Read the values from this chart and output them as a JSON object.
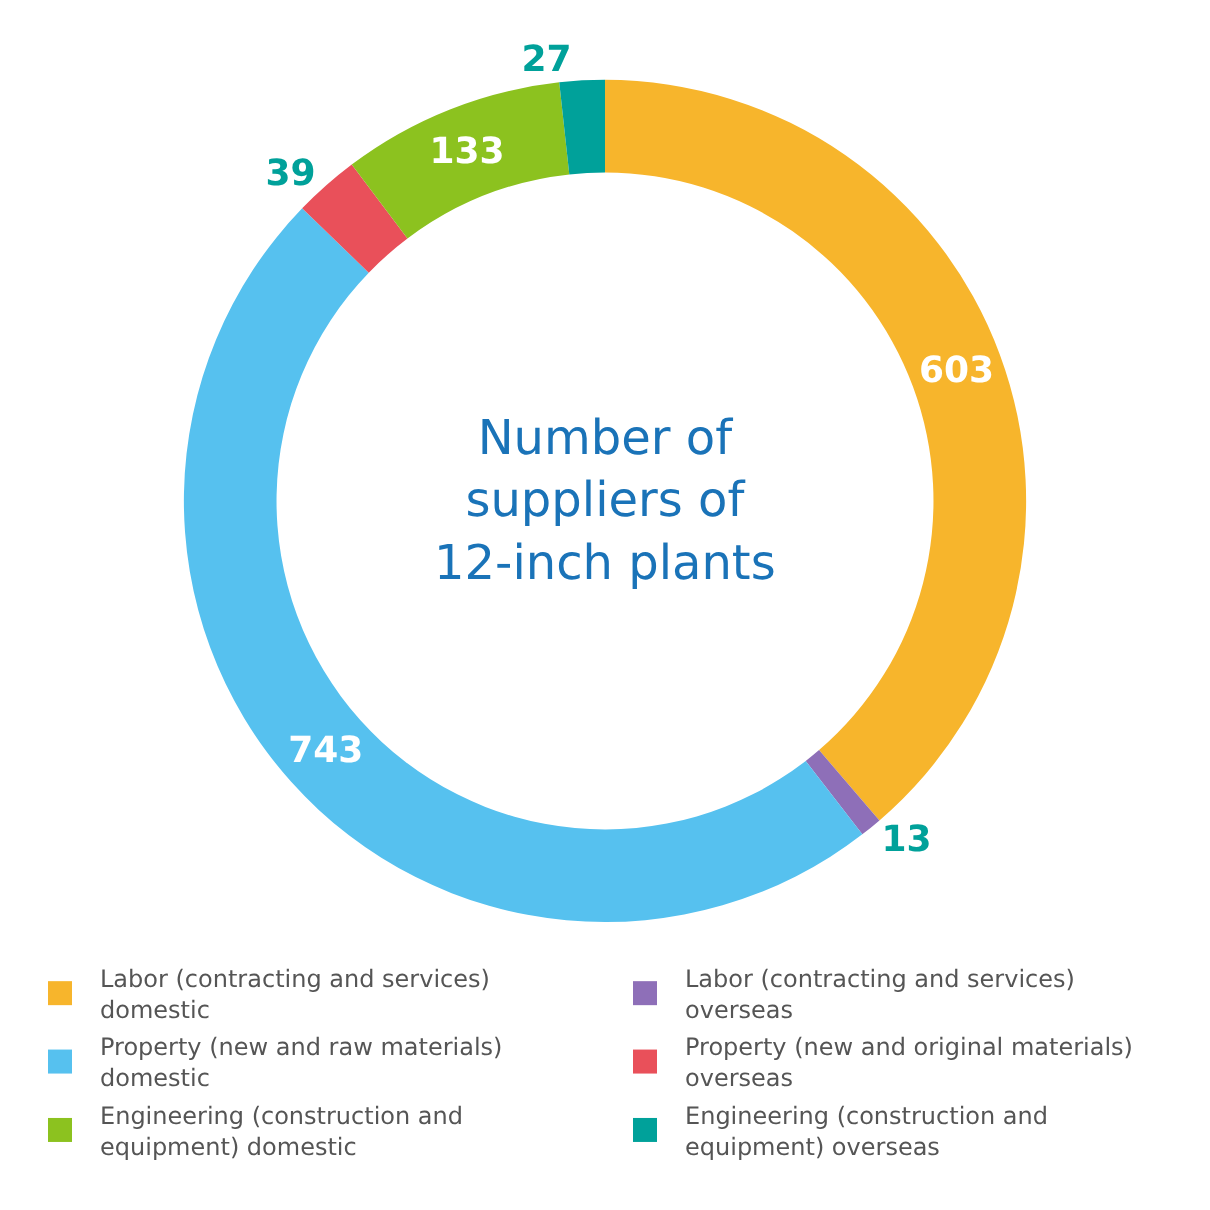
{
  "chart_data": {
    "type": "donut",
    "title": "Number of suppliers of 12-inch plants",
    "categories": [
      "Labor (contracting and services) domestic",
      "Labor (contracting and services) overseas",
      "Property (new and raw materials) domestic",
      "Property (new and original materials) overseas",
      "Engineering (construction and equipment) domestic",
      "Engineering (construction and equipment) overseas"
    ],
    "values": [
      603,
      13,
      743,
      39,
      133,
      27
    ],
    "colors": [
      "#f7b52c",
      "#8e6fb8",
      "#56c1ef",
      "#e9505a",
      "#8cc21f",
      "#00a19a"
    ],
    "data_labels": true,
    "legend": "bottom"
  }
}
